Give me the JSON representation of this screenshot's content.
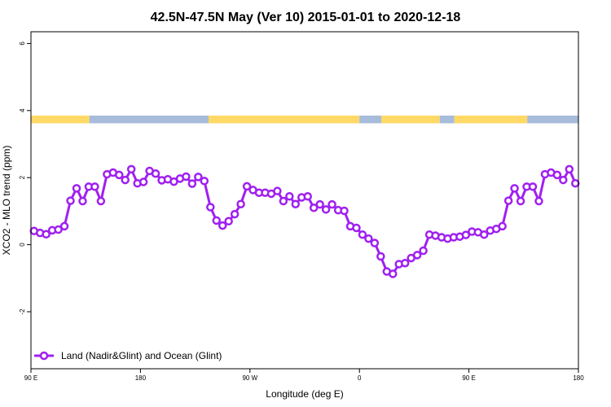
{
  "chart_data": {
    "type": "line",
    "title": "42.5N-47.5N May (Ver 10)   2015-01-01 to 2020-12-18",
    "xlabel": "Longitude (deg E)",
    "ylabel": "XCO2 - MLO trend (ppm)",
    "xlim": [
      90,
      540
    ],
    "ylim": [
      -3.7,
      6.35
    ],
    "x_ticks": [
      {
        "value": 90,
        "label": "90 E"
      },
      {
        "value": 180,
        "label": "180"
      },
      {
        "value": 270,
        "label": "90 W"
      },
      {
        "value": 360,
        "label": "0"
      },
      {
        "value": 450,
        "label": "90 E"
      },
      {
        "value": 540,
        "label": "180"
      }
    ],
    "y_ticks": [
      {
        "value": -2,
        "label": "-2"
      },
      {
        "value": 0,
        "label": "0"
      },
      {
        "value": 2,
        "label": "2"
      },
      {
        "value": 4,
        "label": "4"
      },
      {
        "value": 6,
        "label": "6"
      }
    ],
    "land_ocean_band": {
      "y_range": [
        3.62,
        3.85
      ],
      "land_color": "#FFD966",
      "ocean_color": "#A7BCDA",
      "segments": [
        {
          "type": "land",
          "x": [
            90,
            138
          ]
        },
        {
          "type": "ocean",
          "x": [
            138,
            236
          ]
        },
        {
          "type": "land",
          "x": [
            236,
            360
          ]
        },
        {
          "type": "ocean",
          "x": [
            360,
            378
          ]
        },
        {
          "type": "land",
          "x": [
            378,
            426
          ]
        },
        {
          "type": "ocean",
          "x": [
            426,
            438
          ]
        },
        {
          "type": "land",
          "x": [
            438,
            498
          ]
        },
        {
          "type": "ocean",
          "x": [
            498,
            540
          ]
        }
      ]
    },
    "series": [
      {
        "name": "Land (Nadir&Glint) and Ocean (Glint)",
        "color": "#A020F0",
        "x": [
          92.5,
          97.5,
          102.5,
          107.5,
          112.5,
          117.5,
          122.5,
          127.5,
          132.5,
          137.5,
          142.5,
          147.5,
          152.5,
          157.5,
          162.5,
          167.5,
          172.5,
          177.5,
          182.5,
          187.5,
          192.5,
          197.5,
          202.5,
          207.5,
          212.5,
          217.5,
          222.5,
          227.5,
          232.5,
          237.5,
          242.5,
          247.5,
          252.5,
          257.5,
          262.5,
          267.5,
          272.5,
          277.5,
          282.5,
          287.5,
          292.5,
          297.5,
          302.5,
          307.5,
          312.5,
          317.5,
          322.5,
          327.5,
          332.5,
          337.5,
          342.5,
          347.5,
          352.5,
          357.5,
          362.5,
          367.5,
          372.5,
          377.5,
          382.5,
          387.5,
          392.5,
          397.5,
          402.5,
          407.5,
          412.5,
          417.5,
          422.5,
          427.5,
          432.5,
          437.5,
          442.5,
          447.5,
          452.5,
          457.5,
          462.5,
          467.5,
          472.5,
          477.5,
          482.5,
          487.5,
          492.5,
          497.5,
          502.5,
          507.5,
          512.5,
          517.5,
          522.5,
          527.5,
          532.5,
          537.5
        ],
        "y": [
          0.41,
          0.35,
          0.31,
          0.43,
          0.45,
          0.55,
          1.31,
          1.68,
          1.3,
          1.73,
          1.73,
          1.3,
          2.1,
          2.15,
          2.08,
          1.93,
          2.25,
          1.83,
          1.87,
          2.2,
          2.12,
          1.92,
          1.95,
          1.88,
          1.97,
          2.03,
          1.82,
          2.02,
          1.9,
          1.12,
          0.72,
          0.57,
          0.7,
          0.91,
          1.21,
          1.74,
          1.63,
          1.55,
          1.55,
          1.52,
          1.6,
          1.3,
          1.44,
          1.21,
          1.41,
          1.44,
          1.1,
          1.2,
          1.05,
          1.2,
          1.03,
          1.01,
          0.55,
          0.5,
          0.3,
          0.18,
          0.05,
          -0.35,
          -0.8,
          -0.87,
          -0.58,
          -0.55,
          -0.4,
          -0.31,
          -0.18,
          0.3,
          0.27,
          0.22,
          0.18,
          0.22,
          0.24,
          0.29,
          0.39,
          0.37,
          0.3,
          0.42,
          0.47,
          0.55,
          1.31,
          1.68,
          1.3,
          1.73,
          1.73,
          1.3,
          2.1,
          2.15,
          2.08,
          1.93,
          2.25,
          1.83
        ]
      }
    ],
    "legend": {
      "position": "bottom-left"
    }
  }
}
